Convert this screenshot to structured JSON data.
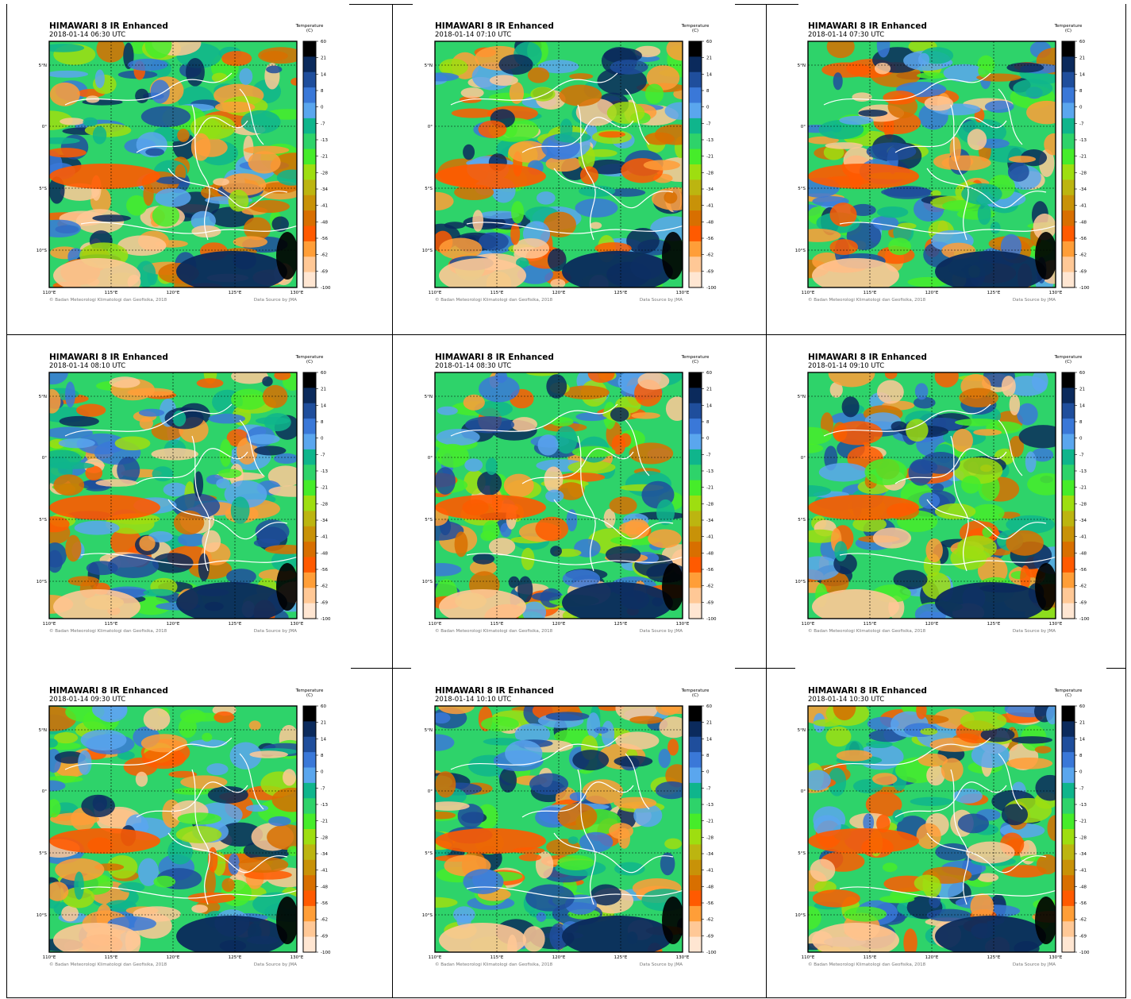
{
  "panels": [
    {
      "title": "HIMAWARI 8 IR Enhanced",
      "time": "2018-01-14  06:30 UTC"
    },
    {
      "title": "HIMAWARI 8 IR Enhanced",
      "time": "2018-01-14  07:10 UTC"
    },
    {
      "title": "HIMAWARI 8 IR Enhanced",
      "time": "2018-01-14  07:30 UTC"
    },
    {
      "title": "HIMAWARI 8 IR Enhanced",
      "time": "2018-01-14  08:10 UTC"
    },
    {
      "title": "HIMAWARI 8 IR Enhanced",
      "time": "2018-01-14  08:30 UTC"
    },
    {
      "title": "HIMAWARI 8 IR Enhanced",
      "time": "2018-01-14  09:10 UTC"
    },
    {
      "title": "HIMAWARI 8 IR Enhanced",
      "time": "2018-01-14  09:30 UTC"
    },
    {
      "title": "HIMAWARI 8 IR Enhanced",
      "time": "2018-01-14  10:10 UTC"
    },
    {
      "title": "HIMAWARI 8 IR Enhanced",
      "time": "2018-01-14  10:30 UTC"
    }
  ],
  "common": {
    "colorbar_title": "Temperature",
    "colorbar_unit": "(C)",
    "colorbar_ticks": [
      "60",
      "21",
      "14",
      "8",
      "0",
      "-7",
      "-13",
      "-21",
      "-28",
      "-34",
      "-41",
      "-48",
      "-56",
      "-62",
      "-69",
      "-100"
    ],
    "colorbar_colors": [
      "#000000",
      "#0b2a5c",
      "#1f4e9c",
      "#3a78d8",
      "#5aa6ee",
      "#0fb58c",
      "#2ed36a",
      "#46ec2a",
      "#9ede10",
      "#bcb510",
      "#c89208",
      "#d86f00",
      "#ff5a00",
      "#ff9e38",
      "#ffc896",
      "#ffe6d2"
    ],
    "lat_labels": [
      "5°N",
      "0°",
      "5°S",
      "10°S"
    ],
    "lon_labels": [
      "110°E",
      "115°E",
      "120°E",
      "125°E",
      "130°E"
    ],
    "credit": "© Badan Meteorologi Klimatologi dan Geofisika, 2018",
    "source": "Data Source by JMA"
  }
}
